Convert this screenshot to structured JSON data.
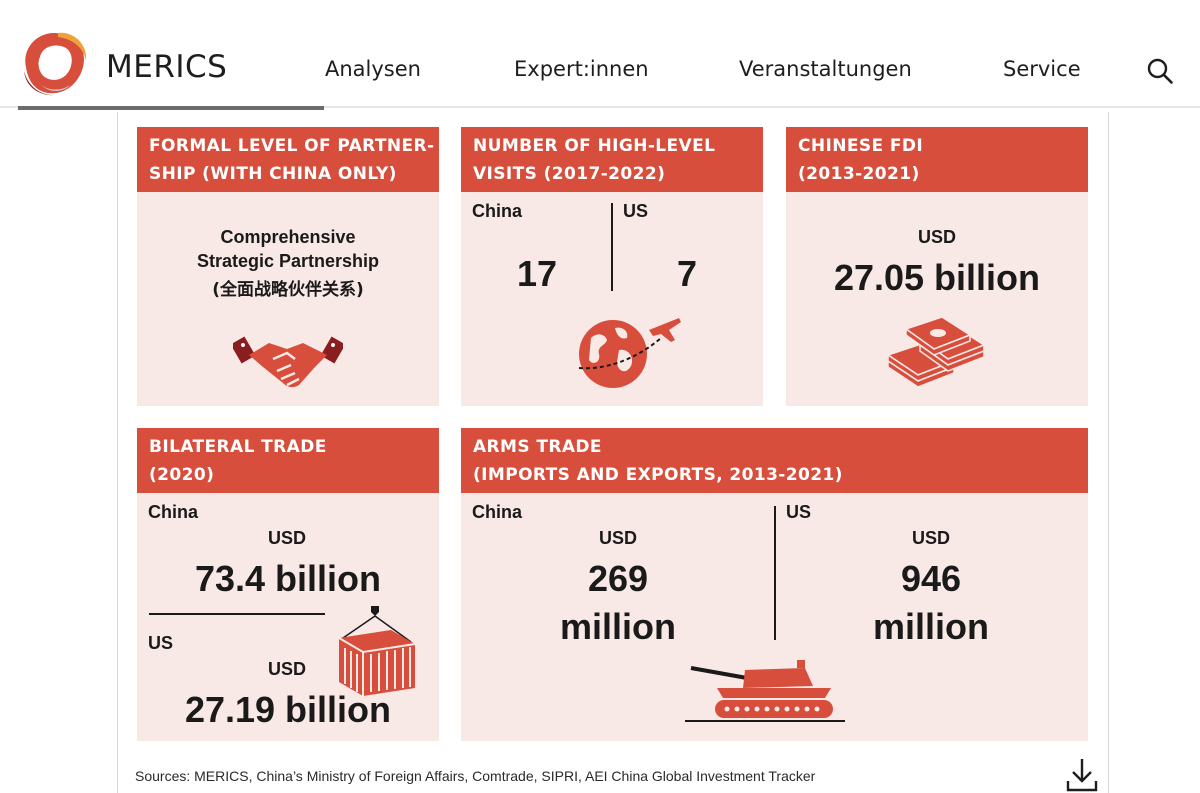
{
  "header": {
    "brand": "MERICS",
    "nav": [
      "Analysen",
      "Expert:innen",
      "Veranstaltungen",
      "Service"
    ],
    "search_icon": "search-icon"
  },
  "colors": {
    "accent": "#d84e3d",
    "card_bg": "#f9e9e6",
    "icon_red": "#d84e3d"
  },
  "cards": {
    "partnership": {
      "title_lines": [
        "FORMAL LEVEL OF PARTNER-",
        "SHIP (WITH CHINA ONLY)"
      ],
      "text_lines": [
        "Comprehensive",
        "Strategic Partnership",
        "(全面战略伙伴关系)"
      ],
      "icon": "handshake-icon"
    },
    "visits": {
      "title_lines": [
        "NUMBER OF HIGH-LEVEL",
        "VISITS (2017-2022)"
      ],
      "china_label": "China",
      "us_label": "US",
      "china_value": "17",
      "us_value": "7",
      "icon": "globe-airplane-icon"
    },
    "fdi": {
      "title_lines": [
        "CHINESE FDI",
        "(2013-2021)"
      ],
      "currency": "USD",
      "value": "27.05 billion",
      "icon": "money-stack-icon"
    },
    "trade": {
      "title_lines": [
        "BILATERAL TRADE",
        "(2020)"
      ],
      "china_label": "China",
      "china_currency": "USD",
      "china_value": "73.4 billion",
      "us_label": "US",
      "us_currency": "USD",
      "us_value": "27.19 billion",
      "icon": "shipping-container-icon"
    },
    "arms": {
      "title_lines": [
        "ARMS TRADE",
        "(IMPORTS AND EXPORTS, 2013-2021)"
      ],
      "china_label": "China",
      "china_currency": "USD",
      "china_value_lines": [
        "269",
        "million"
      ],
      "us_label": "US",
      "us_currency": "USD",
      "us_value_lines": [
        "946",
        "million"
      ],
      "icon": "tank-icon"
    }
  },
  "footer": {
    "sources": "Sources: MERICS, China’s Ministry of Foreign Affairs, Comtrade, SIPRI, AEI China Global Investment Tracker",
    "download_icon": "download-icon"
  }
}
